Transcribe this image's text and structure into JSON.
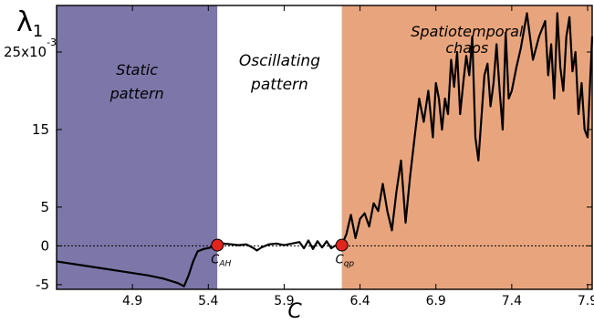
{
  "chart_data": {
    "type": "line",
    "title": "",
    "xlabel": "C",
    "ylabel": "λ1",
    "xlim": [
      4.4,
      7.93
    ],
    "ylim": [
      -5.6,
      31
    ],
    "y_scale_note": "25x10-3",
    "xticks": [
      4.9,
      5.4,
      5.9,
      6.4,
      6.9,
      7.4,
      7.9
    ],
    "yticks": [
      -5,
      0,
      5,
      15,
      25
    ],
    "xtick_labels": [
      "4.9",
      "5.4",
      "5.9",
      "6.4",
      "6.9",
      "7.4",
      "7.9"
    ],
    "ytick_labels": [
      "-5",
      "0",
      "5",
      "15",
      "25"
    ],
    "reference_line": {
      "y": 0,
      "style": "dotted"
    },
    "regions": [
      {
        "label_lines": [
          "Static",
          "pattern"
        ],
        "x0": 4.4,
        "x1": 5.46,
        "color": "#7d76a8"
      },
      {
        "label_lines": [
          "Oscillating",
          "pattern"
        ],
        "x0": 5.46,
        "x1": 6.28,
        "color": "#ffffff"
      },
      {
        "label_lines": [
          "Spatiotemporal",
          "chaos"
        ],
        "x0": 6.28,
        "x1": 7.93,
        "color": "#e8a57d"
      }
    ],
    "markers": [
      {
        "label_main": "C",
        "label_sub": "AH",
        "x": 5.46,
        "y": 0.1,
        "color": "#e2241e"
      },
      {
        "label_main": "C",
        "label_sub": "qp",
        "x": 6.28,
        "y": 0.1,
        "color": "#e2241e"
      }
    ],
    "series": [
      {
        "color": "#000000",
        "x": [
          4.4,
          4.6,
          4.8,
          5.0,
          5.1,
          5.2,
          5.24,
          5.27,
          5.3,
          5.33,
          5.37,
          5.42,
          5.46,
          5.5,
          5.55,
          5.6,
          5.65,
          5.7,
          5.72,
          5.75,
          5.8,
          5.85,
          5.9,
          5.95,
          6.0,
          6.03,
          6.06,
          6.09,
          6.12,
          6.15,
          6.18,
          6.21,
          6.25,
          6.28,
          6.31,
          6.34,
          6.37,
          6.4,
          6.43,
          6.46,
          6.49,
          6.52,
          6.55,
          6.58,
          6.61,
          6.64,
          6.67,
          6.7,
          6.73,
          6.76,
          6.79,
          6.82,
          6.85,
          6.88,
          6.9,
          6.92,
          6.94,
          6.96,
          6.98,
          7.0,
          7.02,
          7.04,
          7.06,
          7.08,
          7.1,
          7.12,
          7.14,
          7.16,
          7.18,
          7.2,
          7.22,
          7.24,
          7.26,
          7.28,
          7.3,
          7.32,
          7.34,
          7.36,
          7.38,
          7.4,
          7.43,
          7.46,
          7.5,
          7.54,
          7.58,
          7.62,
          7.64,
          7.66,
          7.68,
          7.7,
          7.72,
          7.74,
          7.76,
          7.78,
          7.8,
          7.82,
          7.84,
          7.86,
          7.88,
          7.9,
          7.93
        ],
        "y": [
          -2.0,
          -2.6,
          -3.2,
          -3.8,
          -4.2,
          -4.8,
          -5.2,
          -3.8,
          -2.0,
          -0.7,
          -0.4,
          -0.2,
          0.1,
          0.3,
          0.2,
          0.1,
          0.2,
          -0.3,
          -0.6,
          -0.2,
          0.2,
          0.3,
          0.1,
          0.3,
          0.5,
          -0.3,
          0.7,
          -0.4,
          0.6,
          -0.2,
          0.6,
          -0.3,
          0.2,
          0.1,
          1.5,
          4.0,
          1.0,
          3.5,
          4.2,
          2.5,
          5.5,
          4.5,
          8.0,
          4.5,
          2.0,
          7.0,
          11.0,
          3.0,
          9.0,
          14.0,
          19.0,
          16.0,
          20.0,
          14.0,
          21.0,
          19.0,
          15.0,
          19.0,
          17.0,
          24.0,
          20.5,
          25.0,
          17.0,
          21.0,
          24.5,
          22.0,
          27.0,
          14.0,
          11.0,
          16.5,
          22.0,
          23.5,
          18.0,
          21.0,
          26.0,
          20.0,
          15.0,
          27.5,
          19.0,
          20.0,
          23.0,
          25.5,
          30.0,
          24.0,
          27.0,
          29.0,
          22.0,
          26.0,
          19.0,
          30.0,
          23.0,
          20.0,
          27.0,
          29.5,
          22.5,
          25.0,
          17.0,
          21.0,
          15.0,
          14.0,
          27.0
        ]
      }
    ]
  }
}
